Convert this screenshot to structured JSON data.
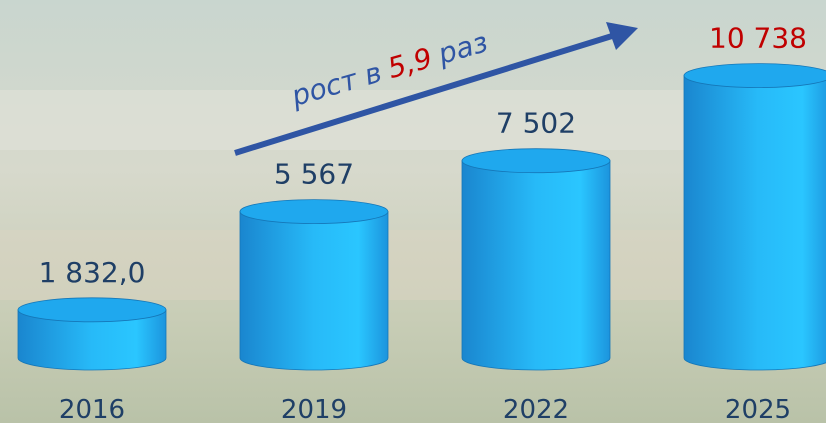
{
  "chart_data": {
    "type": "cylinder",
    "categories": [
      "2016",
      "2019",
      "2022",
      "2025"
    ],
    "values": [
      1832.0,
      5567,
      7502,
      10738
    ],
    "value_labels": [
      "1 832,0",
      "5 567",
      "7 502",
      "10 738"
    ],
    "color": "#1fa8ee",
    "label_color": "#1f3f66",
    "value_label_colors": [
      "#1f3f66",
      "#1f3f66",
      "#1f3f66",
      "#c00000"
    ],
    "annotation": [
      "рост в",
      "5,9",
      "раз"
    ],
    "annotation_colors": [
      "#2f55a4",
      "#c00000",
      "#2f55a4"
    ],
    "arrow_color": "#2f55a4"
  }
}
